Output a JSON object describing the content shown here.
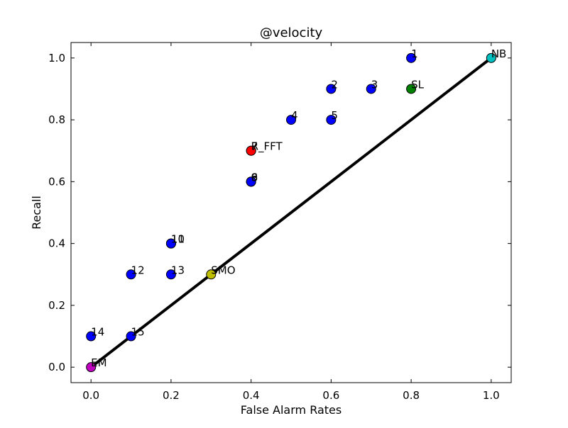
{
  "chart_data": {
    "type": "scatter",
    "title": "@velocity",
    "xlabel": "False Alarm Rates",
    "ylabel": "Recall",
    "xlim": [
      -0.05,
      1.05
    ],
    "ylim": [
      -0.05,
      1.05
    ],
    "xticks": [
      "0.0",
      "0.2",
      "0.4",
      "0.6",
      "0.8",
      "1.0"
    ],
    "yticks": [
      "0.0",
      "0.2",
      "0.4",
      "0.6",
      "0.8",
      "1.0"
    ],
    "grid": false,
    "reference_line": {
      "x": [
        0,
        1
      ],
      "y": [
        0,
        1
      ],
      "color": "#000000"
    },
    "points": [
      {
        "label": "1",
        "x": 0.8,
        "y": 1.0,
        "color": "#0000ff"
      },
      {
        "label": "2",
        "x": 0.6,
        "y": 0.9,
        "color": "#0000ff"
      },
      {
        "label": "3",
        "x": 0.7,
        "y": 0.9,
        "color": "#0000ff"
      },
      {
        "label": "4",
        "x": 0.5,
        "y": 0.8,
        "color": "#0000ff"
      },
      {
        "label": "5",
        "x": 0.6,
        "y": 0.8,
        "color": "#0000ff"
      },
      {
        "label": "6",
        "x": 0.4,
        "y": 0.6,
        "color": "#0000ff"
      },
      {
        "label": "7",
        "x": 0.4,
        "y": 0.7,
        "color": "#0000ff"
      },
      {
        "label": "8",
        "x": 0.4,
        "y": 0.6,
        "color": "#0000ff"
      },
      {
        "label": "9",
        "x": 0.4,
        "y": 0.6,
        "color": "#0000ff"
      },
      {
        "label": "10",
        "x": 0.2,
        "y": 0.4,
        "color": "#0000ff"
      },
      {
        "label": "11",
        "x": 0.2,
        "y": 0.4,
        "color": "#0000ff"
      },
      {
        "label": "12",
        "x": 0.1,
        "y": 0.3,
        "color": "#0000ff"
      },
      {
        "label": "13",
        "x": 0.2,
        "y": 0.3,
        "color": "#0000ff"
      },
      {
        "label": "14",
        "x": 0.0,
        "y": 0.1,
        "color": "#0000ff"
      },
      {
        "label": "15",
        "x": 0.1,
        "y": 0.1,
        "color": "#0000ff"
      },
      {
        "label": "R_FFT",
        "x": 0.4,
        "y": 0.7,
        "color": "#ff0000"
      },
      {
        "label": "SL",
        "x": 0.8,
        "y": 0.9,
        "color": "#008000"
      },
      {
        "label": "NB",
        "x": 1.0,
        "y": 1.0,
        "color": "#00bfbf"
      },
      {
        "label": "SMO",
        "x": 0.3,
        "y": 0.3,
        "color": "#bfbf00"
      },
      {
        "label": "EM",
        "x": 0.0,
        "y": 0.0,
        "color": "#bf00bf"
      }
    ]
  }
}
